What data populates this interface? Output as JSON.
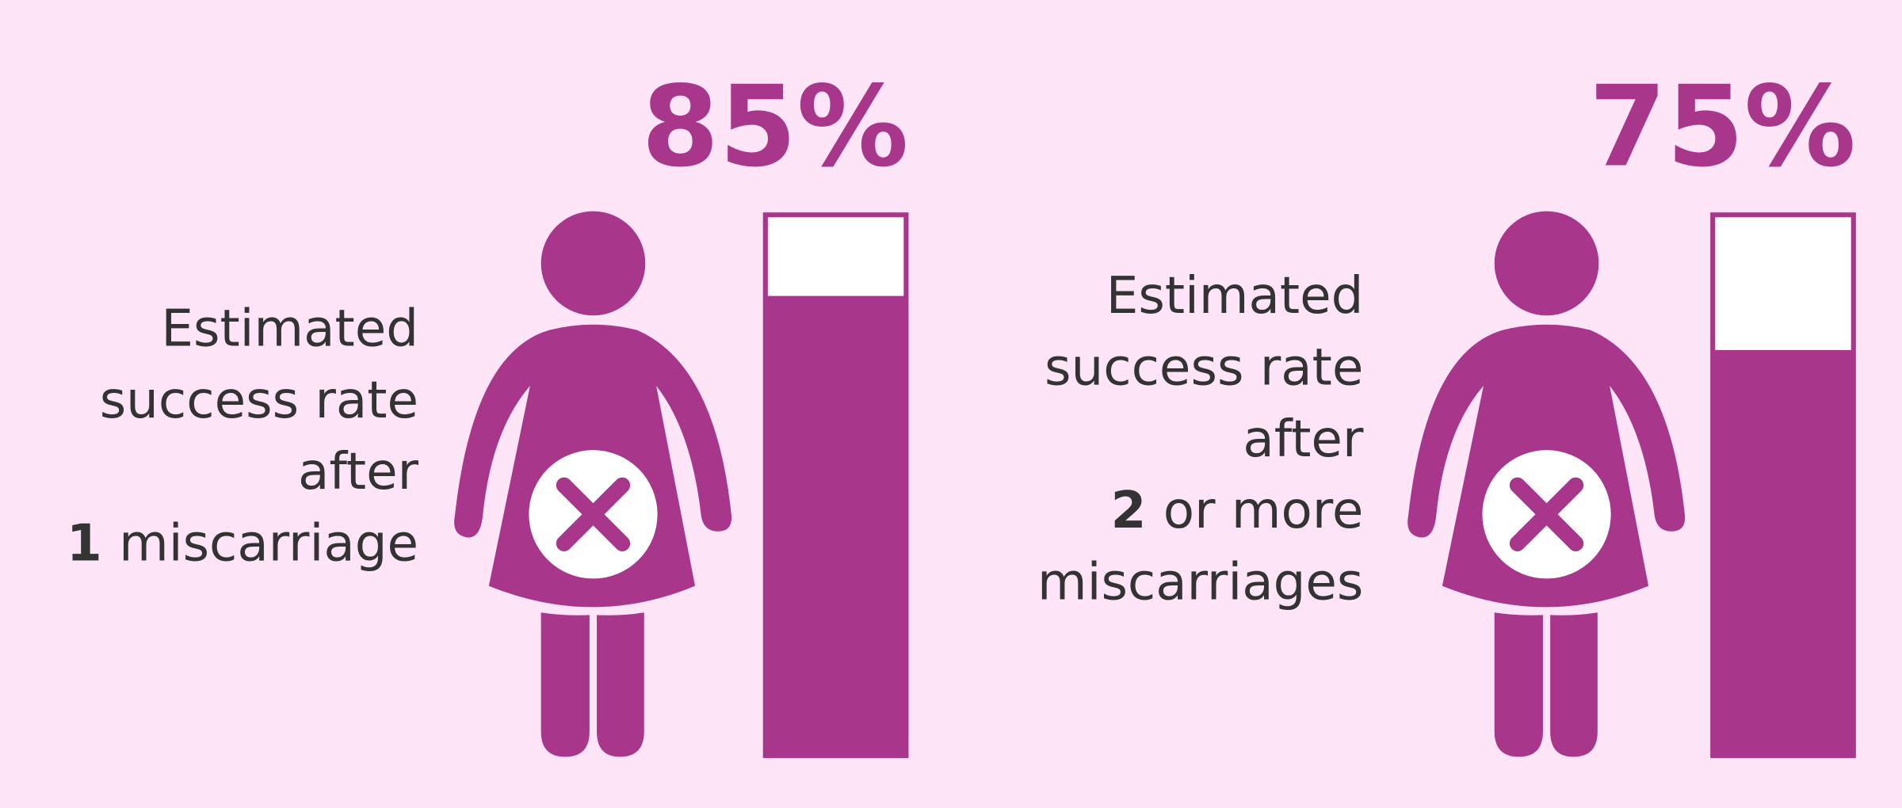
{
  "chart_data": [
    {
      "type": "bar",
      "values": [
        85
      ],
      "value_labels": [
        "85%"
      ],
      "ylim": [
        0,
        100
      ],
      "color": "#a8368a",
      "label_lines": [
        [
          "Estimated"
        ],
        [
          "success rate"
        ],
        [
          "after"
        ],
        [
          {
            "text": "1",
            "bold": true
          },
          "miscarriage"
        ]
      ]
    },
    {
      "type": "bar",
      "values": [
        75
      ],
      "value_labels": [
        "75%"
      ],
      "ylim": [
        0,
        100
      ],
      "color": "#a8368a",
      "label_lines": [
        [
          "Estimated"
        ],
        [
          "success rate"
        ],
        [
          "after"
        ],
        [
          {
            "text": "2",
            "bold": true
          },
          "or more"
        ],
        [
          "miscarriages"
        ]
      ]
    }
  ]
}
